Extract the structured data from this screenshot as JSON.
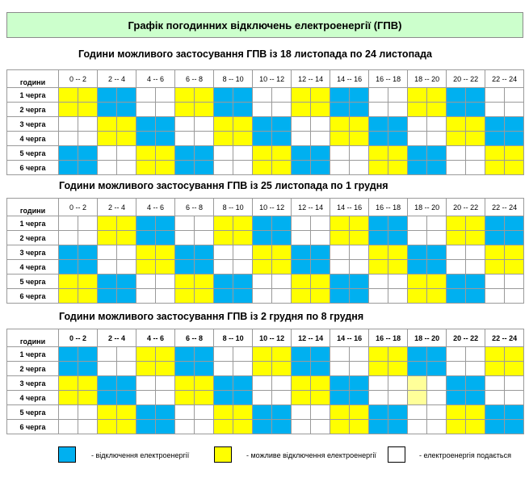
{
  "title": "Графік погодинних відключень електроенергії (ГПВ)",
  "colors": {
    "blue": "#00b0f0",
    "yellow": "#ffff00",
    "white": "#ffffff",
    "pale": "#ffff99",
    "header_bg": "#ccffcc"
  },
  "header_label": "години",
  "time_slots": [
    "0 -- 2",
    "2 -- 4",
    "4 -- 6",
    "6 -- 8",
    "8 -- 10",
    "10 -- 12",
    "12 -- 14",
    "14 -- 16",
    "16 -- 18",
    "18 -- 20",
    "20 -- 22",
    "22 -- 24"
  ],
  "sections": [
    {
      "heading": "Години можливого застосування ГПВ із 18 листопада по 24 листопада",
      "queues": [
        {
          "label": "1 черга",
          "cells": "YYBBWWYYBBWWYYBBWWYYBBWW"
        },
        {
          "label": "2 черга",
          "cells": "YYBBWWYYBBWWYYBBWWYYBBWW"
        },
        {
          "label": "3 черга",
          "cells": "WWYYBBWWYYBBWWYYBBWWYYBB"
        },
        {
          "label": "4 черга",
          "cells": "WWYYBBWWYYBBWWYYBBWWYYBB"
        },
        {
          "label": "5 черга",
          "cells": "BBWWYYBBWWYYBBWWYYBBWWYY"
        },
        {
          "label": "6 черга",
          "cells": "BBWWYYBBWWYYBBWWYYBBWWYY"
        }
      ]
    },
    {
      "heading": "Години можливого застосування ГПВ із 25 листопада по 1 грудня",
      "queues": [
        {
          "label": "1 черга",
          "cells": "WWYYBBWWYYBBWWYYBBWWYYBB"
        },
        {
          "label": "2 черга",
          "cells": "WWYYBBWWYYBBWWYYBBWWYYBB"
        },
        {
          "label": "3 черга",
          "cells": "BBWWYYBBWWYYBBWWYYBBWWYY"
        },
        {
          "label": "4 черга",
          "cells": "BBWWYYBBWWYYBBWWYYBBWWYY"
        },
        {
          "label": "5 черга",
          "cells": "YYBBWWYYBBWWYYBBWWYYBBWW"
        },
        {
          "label": "6 черга",
          "cells": "YYBBWWYYBBWWYYBBWWYYBBWW"
        }
      ]
    },
    {
      "heading": "Години можливого застосування ГПВ із 2 грудня по 8 грудня",
      "queues": [
        {
          "label": "1 черга",
          "cells": "BBWWYYBBWWYYBBWWYYBBWWYY"
        },
        {
          "label": "2 черга",
          "cells": "BBWWYYBBWWYYBBWWYYBBWWYY"
        },
        {
          "label": "3 черга",
          "cells": "YYBBWWYYBBWWYYBBWWPWBBWW"
        },
        {
          "label": "4 черга",
          "cells": "YYBBWWYYBBWWYYBBWWPWBBWW"
        },
        {
          "label": "5 черга",
          "cells": "WWYYBBWWYYBBWWYYBBWWYYBB"
        },
        {
          "label": "6 черга",
          "cells": "WWYYBBWWYYBBWWYYBBWWYYBB"
        }
      ]
    }
  ],
  "legend": [
    {
      "color": "#00b0f0",
      "text": "- відключення електроенергії"
    },
    {
      "color": "#ffff00",
      "text": "- можливе відключення електроенергії"
    },
    {
      "color": "#ffffff",
      "text": "- електроенергія подається"
    }
  ]
}
